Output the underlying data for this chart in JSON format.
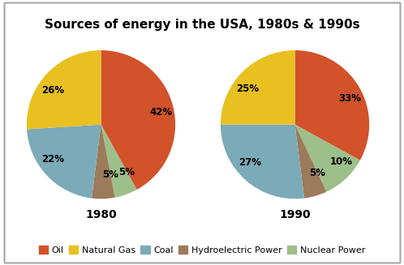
{
  "title": "Sources of energy in the USA, 1980s & 1990s",
  "title_fontsize": 11,
  "label_1980": "1980",
  "label_1990": "1990",
  "categories": [
    "Oil",
    "Natural Gas",
    "Coal",
    "Hydroelectric Power",
    "Nuclear Power"
  ],
  "colors": [
    "#D2522A",
    "#E8C020",
    "#7BAAB8",
    "#9B7B5A",
    "#9DBF8A"
  ],
  "values_1980": [
    42,
    26,
    22,
    5,
    5
  ],
  "values_1990": [
    33,
    25,
    27,
    5,
    10
  ],
  "pct_labels_1980": [
    "42%",
    "26%",
    "22%",
    "5%",
    "5%"
  ],
  "pct_labels_1990": [
    "33%",
    "25%",
    "27%",
    "5%",
    "10%"
  ],
  "bg_color": "#FFFFFF",
  "legend_fontsize": 8,
  "label_fontsize": 10,
  "pct_fontsize": 8.5,
  "border_color": "#AAAAAA"
}
